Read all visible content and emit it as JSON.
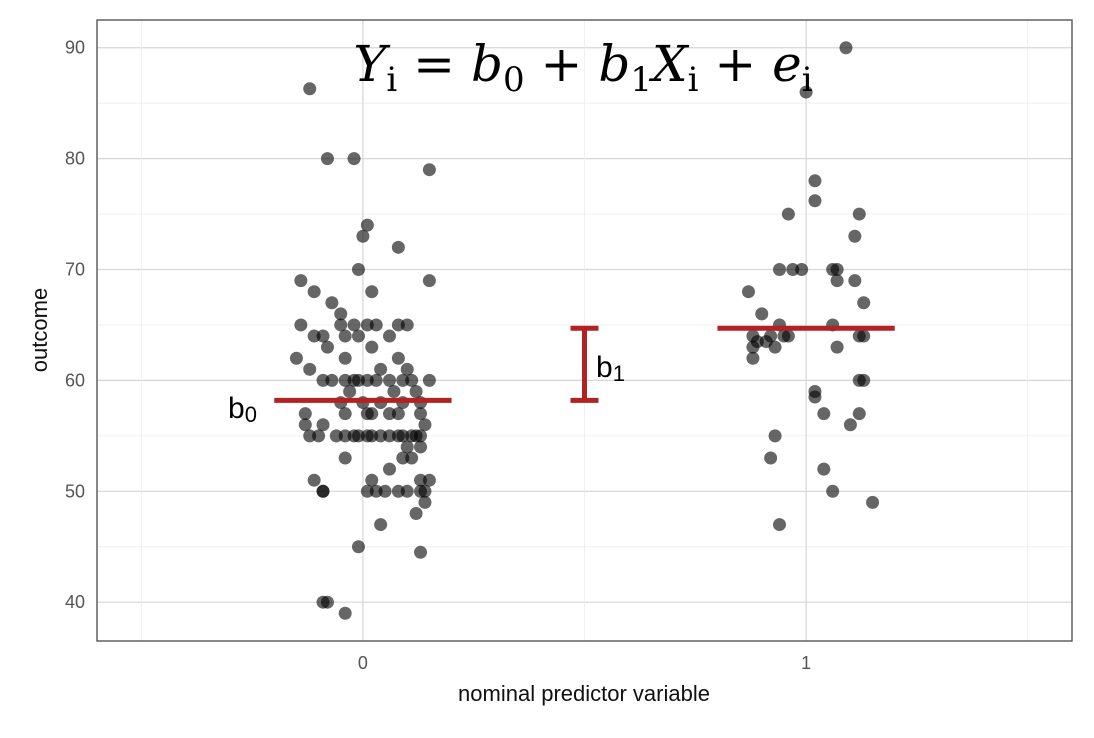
{
  "chart_data": {
    "type": "scatter",
    "title": "",
    "formula": {
      "parts": [
        "Y",
        "i",
        " = ",
        "b",
        "0",
        " + ",
        "b",
        "1",
        "X",
        "i",
        " + ",
        "e",
        "i"
      ]
    },
    "xlabel": "nominal predictor variable",
    "ylabel": "outcome",
    "x_tick_labels": [
      "0",
      "1"
    ],
    "y_ticks": [
      40,
      50,
      60,
      70,
      80,
      90
    ],
    "xlim": [
      -0.6,
      1.6
    ],
    "ylim": [
      36.5,
      92.5
    ],
    "grid": true,
    "point_color": "#000000",
    "line_color": "#b22222",
    "group_means": [
      {
        "x": 0,
        "y": 58.2
      },
      {
        "x": 1,
        "y": 64.7
      }
    ],
    "annotations": {
      "b0_label": "b0",
      "b1_label": "b1",
      "b1_bracket": {
        "x": 0.5,
        "y_low": 58.2,
        "y_high": 64.7
      }
    },
    "points": [
      [
        -0.12,
        86.3
      ],
      [
        -0.08,
        80
      ],
      [
        -0.02,
        80
      ],
      [
        0.15,
        79
      ],
      [
        0.01,
        74
      ],
      [
        0,
        73
      ],
      [
        0.08,
        72
      ],
      [
        -0.01,
        70
      ],
      [
        -0.14,
        69
      ],
      [
        0.15,
        69
      ],
      [
        -0.11,
        68
      ],
      [
        0.02,
        68
      ],
      [
        -0.07,
        67
      ],
      [
        -0.05,
        66
      ],
      [
        -0.14,
        65
      ],
      [
        -0.05,
        65
      ],
      [
        -0.02,
        65
      ],
      [
        0.01,
        65
      ],
      [
        0.03,
        65
      ],
      [
        0.08,
        65
      ],
      [
        0.1,
        65
      ],
      [
        -0.11,
        64
      ],
      [
        -0.09,
        64
      ],
      [
        -0.04,
        64
      ],
      [
        -0.01,
        64
      ],
      [
        0.06,
        64
      ],
      [
        0.02,
        63
      ],
      [
        -0.08,
        63
      ],
      [
        -0.15,
        62
      ],
      [
        -0.04,
        62
      ],
      [
        0.08,
        62
      ],
      [
        -0.12,
        61
      ],
      [
        0.04,
        61
      ],
      [
        0.1,
        61
      ],
      [
        -0.09,
        60
      ],
      [
        -0.07,
        60
      ],
      [
        -0.04,
        60
      ],
      [
        -0.02,
        60
      ],
      [
        -0.01,
        60
      ],
      [
        0.01,
        60
      ],
      [
        0.03,
        60
      ],
      [
        0.06,
        60
      ],
      [
        0.09,
        60
      ],
      [
        0.11,
        60
      ],
      [
        0.15,
        60
      ],
      [
        -0.03,
        59
      ],
      [
        0.07,
        59
      ],
      [
        0.12,
        59
      ],
      [
        -0.05,
        58
      ],
      [
        0,
        58
      ],
      [
        0.04,
        58
      ],
      [
        0.09,
        58
      ],
      [
        0.13,
        58
      ],
      [
        -0.13,
        57
      ],
      [
        -0.04,
        57
      ],
      [
        0.01,
        57
      ],
      [
        0.02,
        57
      ],
      [
        0.06,
        57
      ],
      [
        0.08,
        57
      ],
      [
        0.13,
        57
      ],
      [
        -0.13,
        56
      ],
      [
        -0.09,
        56
      ],
      [
        0.14,
        56
      ],
      [
        -0.12,
        55
      ],
      [
        -0.1,
        55
      ],
      [
        -0.06,
        55
      ],
      [
        -0.04,
        55
      ],
      [
        -0.02,
        55
      ],
      [
        -0.01,
        55
      ],
      [
        0.01,
        55
      ],
      [
        0.02,
        55
      ],
      [
        0.04,
        55
      ],
      [
        0.06,
        55
      ],
      [
        0.08,
        55
      ],
      [
        0.09,
        55
      ],
      [
        0.11,
        55
      ],
      [
        0.12,
        55
      ],
      [
        0.13,
        55
      ],
      [
        0.1,
        54
      ],
      [
        0.13,
        54
      ],
      [
        -0.04,
        53
      ],
      [
        0.09,
        53
      ],
      [
        0.11,
        53
      ],
      [
        0.06,
        52
      ],
      [
        -0.11,
        51
      ],
      [
        0.02,
        51
      ],
      [
        0.13,
        51
      ],
      [
        0.15,
        51
      ],
      [
        -0.09,
        50
      ],
      [
        -0.09,
        50
      ],
      [
        0.01,
        50
      ],
      [
        0.03,
        50
      ],
      [
        0.05,
        50
      ],
      [
        0.08,
        50
      ],
      [
        0.1,
        50
      ],
      [
        0.13,
        50
      ],
      [
        0.14,
        50
      ],
      [
        0.14,
        49
      ],
      [
        0.12,
        48
      ],
      [
        0.04,
        47
      ],
      [
        -0.01,
        45
      ],
      [
        0.13,
        44.5
      ],
      [
        -0.09,
        40
      ],
      [
        -0.08,
        40
      ],
      [
        -0.04,
        39
      ],
      [
        1.09,
        90
      ],
      [
        1,
        86
      ],
      [
        1.02,
        78
      ],
      [
        1.02,
        76.2
      ],
      [
        0.96,
        75
      ],
      [
        1.12,
        75
      ],
      [
        1.11,
        73
      ],
      [
        0.94,
        70
      ],
      [
        0.97,
        70
      ],
      [
        0.99,
        70
      ],
      [
        1.06,
        70
      ],
      [
        1.07,
        70
      ],
      [
        1.07,
        69
      ],
      [
        1.11,
        69
      ],
      [
        0.87,
        68
      ],
      [
        1.13,
        67
      ],
      [
        0.9,
        66
      ],
      [
        0.94,
        65
      ],
      [
        1.06,
        65
      ],
      [
        0.88,
        64
      ],
      [
        0.92,
        64
      ],
      [
        0.95,
        64
      ],
      [
        0.96,
        64
      ],
      [
        1.12,
        64
      ],
      [
        1.13,
        64
      ],
      [
        0.89,
        63.5
      ],
      [
        0.91,
        63.5
      ],
      [
        0.88,
        63
      ],
      [
        0.93,
        63
      ],
      [
        1.07,
        63
      ],
      [
        0.88,
        62
      ],
      [
        1.12,
        60
      ],
      [
        1.13,
        60
      ],
      [
        1.02,
        59
      ],
      [
        1.02,
        58.5
      ],
      [
        1.04,
        57
      ],
      [
        1.12,
        57
      ],
      [
        1.1,
        56
      ],
      [
        0.93,
        55
      ],
      [
        0.92,
        53
      ],
      [
        1.04,
        52
      ],
      [
        1.06,
        50
      ],
      [
        1.15,
        49
      ],
      [
        0.94,
        47
      ]
    ]
  }
}
